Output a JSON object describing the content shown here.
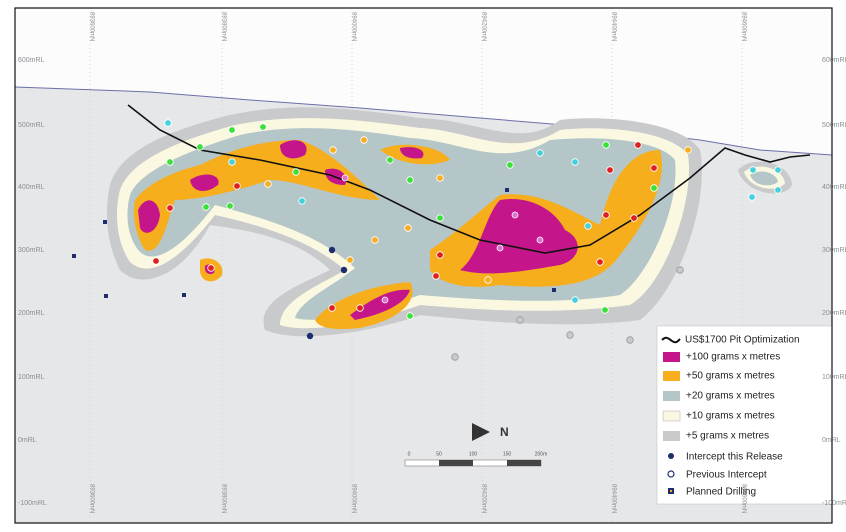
{
  "rl_labels": [
    "600mRL",
    "500mRL",
    "400mRL",
    "300mRL",
    "200mRL",
    "100mRL",
    "0mRL",
    "-100mRL"
  ],
  "northing_labels": [
    "893600mN",
    "893800mN",
    "894000mN",
    "894200mN",
    "894400mN",
    "894600mN"
  ],
  "north_label": "N",
  "scale_labels": [
    "0",
    "50",
    "100",
    "150",
    "200m"
  ],
  "legend": [
    "US$1700 Pit Optimization",
    "+100 grams x metres",
    "+50 grams x metres",
    "+20 grams x metres",
    "+10 grams x metres",
    "+5 grams x metres",
    "Intercept this Release",
    "Previous Intercept",
    "Planned Drilling"
  ]
}
